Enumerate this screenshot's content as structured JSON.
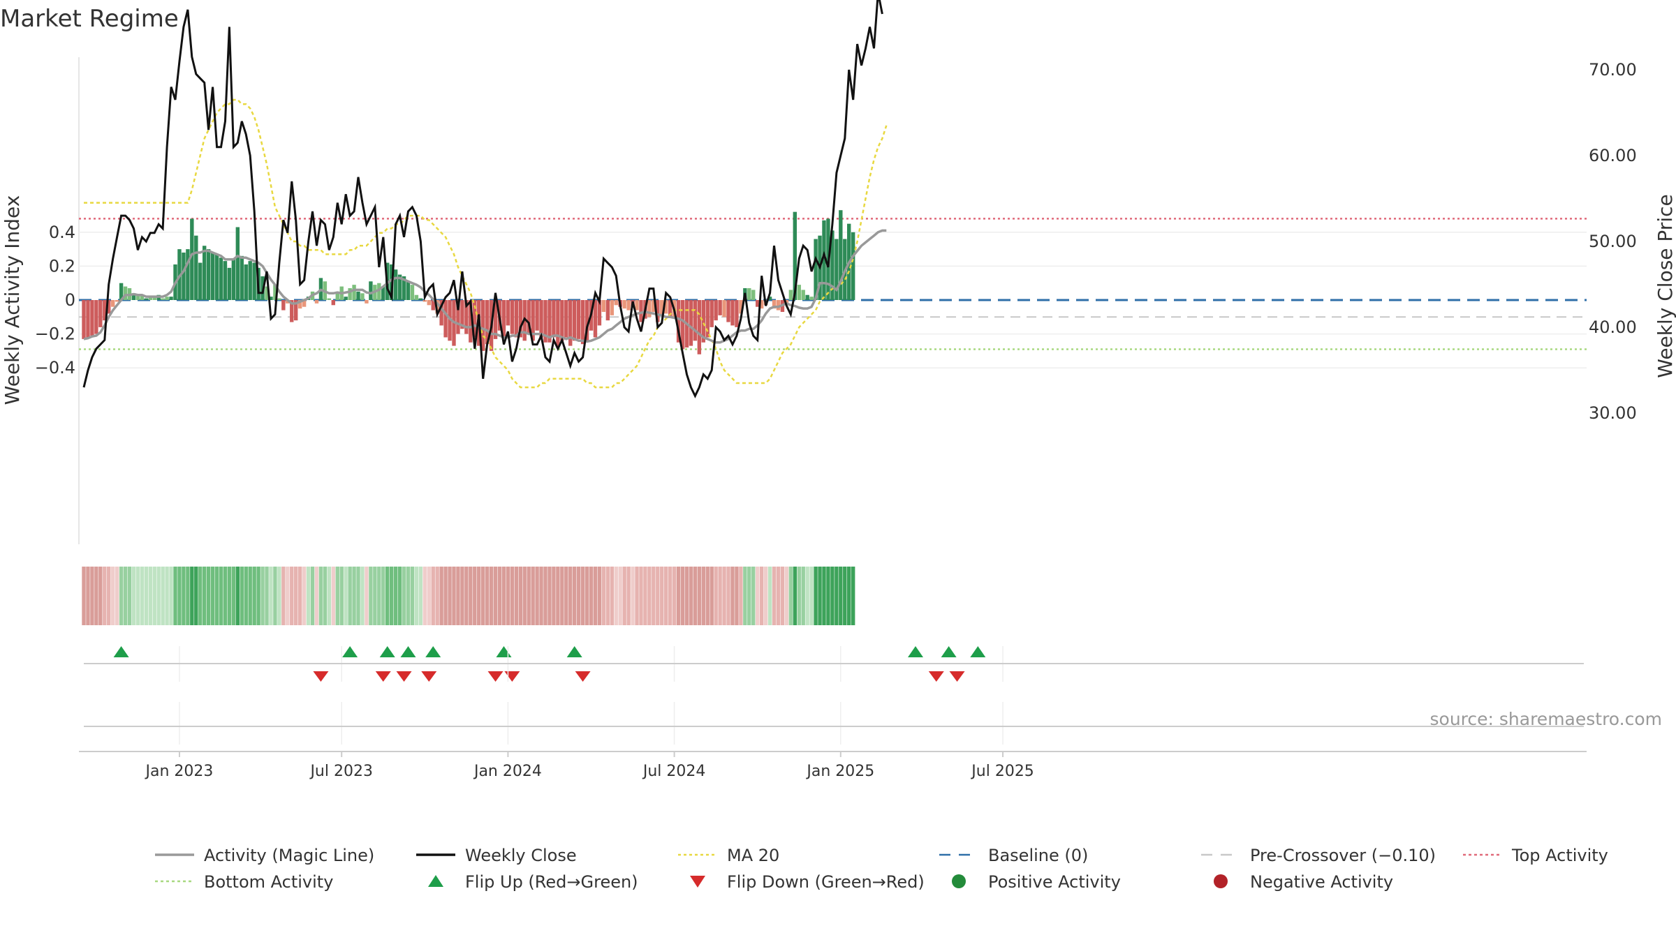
{
  "chart_data": {
    "type": "bar",
    "title": "Market Regime",
    "ylabel_left": "Weekly Activity Index",
    "ylabel_right": "Weekly Close Price",
    "ylim_left": [
      -0.57,
      0.57
    ],
    "ylim_right": [
      25.0,
      80.0
    ],
    "left_ticks": [
      "0.4",
      "0.2",
      "0",
      "−0.2",
      "−0.4"
    ],
    "left_tick_values": [
      0.4,
      0.2,
      0,
      -0.2,
      -0.4
    ],
    "right_ticks": [
      "80.00",
      "70.00",
      "60.00",
      "50.00",
      "40.00",
      "30.00"
    ],
    "right_tick_values": [
      80,
      70,
      60,
      50,
      40,
      30
    ],
    "x_ticks": [
      "Jan 2023",
      "Jul 2023",
      "Jan 2024",
      "Jul 2024",
      "Jan 2025",
      "Jul 2025"
    ],
    "x_tick_week_index": [
      23,
      62,
      102,
      142,
      182,
      221
    ],
    "reference_lines": {
      "top_activity": 0.48,
      "pre_crossover": -0.1,
      "baseline": 0,
      "bottom_activity": -0.29
    },
    "activity": [
      -0.23,
      -0.22,
      -0.21,
      -0.2,
      -0.16,
      -0.12,
      -0.08,
      -0.04,
      -0.01,
      0.1,
      0.08,
      0.07,
      0.04,
      0.03,
      0.03,
      0.01,
      0.02,
      0.02,
      0.03,
      0.01,
      0.02,
      0.02,
      0.21,
      0.3,
      0.28,
      0.3,
      0.48,
      0.38,
      0.22,
      0.32,
      0.3,
      0.28,
      0.27,
      0.25,
      0.23,
      0.19,
      0.24,
      0.43,
      0.26,
      0.21,
      0.23,
      0.22,
      0.19,
      0.14,
      0.08,
      0.02,
      0.09,
      0.01,
      -0.06,
      -0.02,
      -0.13,
      -0.12,
      -0.05,
      -0.04,
      0.02,
      0.05,
      -0.02,
      0.13,
      0.11,
      0.01,
      -0.03,
      0.05,
      0.08,
      0.02,
      0.07,
      0.09,
      0.05,
      0.04,
      -0.02,
      0.11,
      0.09,
      0.1,
      0.08,
      0.22,
      0.21,
      0.18,
      0.15,
      0.14,
      0.11,
      0.09,
      0.03,
      0.01,
      -0.01,
      -0.03,
      -0.06,
      -0.08,
      -0.15,
      -0.22,
      -0.24,
      -0.27,
      -0.2,
      -0.17,
      -0.2,
      -0.25,
      -0.22,
      -0.27,
      -0.3,
      -0.26,
      -0.3,
      -0.23,
      -0.18,
      -0.22,
      -0.15,
      -0.2,
      -0.22,
      -0.22,
      -0.24,
      -0.2,
      -0.24,
      -0.18,
      -0.22,
      -0.25,
      -0.25,
      -0.22,
      -0.28,
      -0.24,
      -0.22,
      -0.27,
      -0.24,
      -0.23,
      -0.26,
      -0.24,
      -0.18,
      -0.22,
      -0.15,
      -0.07,
      -0.12,
      -0.09,
      -0.03,
      -0.04,
      -0.05,
      -0.06,
      -0.04,
      -0.06,
      -0.13,
      -0.11,
      -0.1,
      -0.07,
      -0.13,
      -0.09,
      -0.08,
      -0.1,
      -0.1,
      -0.25,
      -0.29,
      -0.28,
      -0.27,
      -0.24,
      -0.32,
      -0.25,
      -0.22,
      -0.16,
      -0.12,
      -0.09,
      -0.1,
      -0.13,
      -0.15,
      -0.16,
      -0.08,
      0.07,
      0.07,
      0.06,
      -0.04,
      -0.05,
      -0.03,
      0.02,
      -0.05,
      -0.06,
      -0.07,
      -0.02,
      0.06,
      0.52,
      0.09,
      0.06,
      0.03,
      0.02,
      0.36,
      0.38,
      0.47,
      0.48,
      0.41,
      0.36,
      0.53,
      0.36,
      0.45,
      0.4
    ],
    "activity_colors": {
      "positive_strong": "#2e8b57",
      "positive_light": "#7dbf7d",
      "negative_strong": "#cd5c5c",
      "negative_light": "#e9967a"
    },
    "weekly_close": [
      33,
      35,
      36.5,
      37.5,
      38,
      38.5,
      45,
      48,
      50.5,
      53,
      53,
      52.5,
      51.5,
      49,
      50.5,
      50,
      51,
      51,
      52,
      51.5,
      61,
      68,
      66.5,
      71,
      75,
      77,
      71.5,
      69.5,
      69,
      68.5,
      63,
      68,
      61,
      61,
      64,
      75,
      61,
      61.5,
      64,
      62.5,
      60,
      53.5,
      44,
      44,
      46.5,
      41,
      41.5,
      47.5,
      52.5,
      51,
      57,
      52.5,
      45,
      45.5,
      50,
      53.5,
      49.5,
      52.5,
      52,
      49,
      50.5,
      54.5,
      52,
      55.5,
      53,
      53.5,
      57.5,
      54.5,
      52,
      53,
      54,
      47,
      50.5,
      44.5,
      43.5,
      52,
      53,
      50.5,
      53.5,
      54,
      53,
      50,
      43.5,
      44.5,
      45,
      41.5,
      42.5,
      43.5,
      44,
      45.5,
      42,
      46.5,
      42.5,
      43,
      37.5,
      41.5,
      34,
      38,
      40,
      44,
      41,
      38,
      39.5,
      36,
      37.5,
      40,
      41,
      40.5,
      38,
      38,
      39,
      36.5,
      36,
      38.5,
      37.5,
      38.5,
      37,
      35.5,
      37,
      36,
      36.5,
      40,
      41.5,
      44,
      43,
      48,
      47.5,
      47,
      46,
      42.5,
      40,
      39.5,
      43,
      41,
      39.5,
      42,
      44.5,
      44.5,
      40,
      40.5,
      44,
      43.5,
      42,
      39.5,
      37,
      34.5,
      33,
      32,
      33,
      34.5,
      34,
      35,
      40,
      39.5,
      38.5,
      39,
      38,
      39,
      41,
      44,
      40.5,
      39,
      38.5,
      46,
      42.5,
      44,
      49.5,
      45.5,
      44,
      42.5,
      41.5,
      44,
      48,
      49.5,
      49,
      46.5,
      48,
      47,
      48.5,
      47,
      52,
      58,
      60,
      62,
      70,
      66.5,
      73,
      70.5,
      72.5,
      75,
      72.5,
      79,
      76.5
    ],
    "activity_magic_line": [
      -0.23,
      -0.225,
      -0.215,
      -0.21,
      -0.19,
      -0.15,
      -0.1,
      -0.06,
      -0.03,
      0,
      0.03,
      0.03,
      0.035,
      0.03,
      0.03,
      0.02,
      0.02,
      0.02,
      0.02,
      0.02,
      0.03,
      0.05,
      0.1,
      0.14,
      0.17,
      0.22,
      0.27,
      0.28,
      0.28,
      0.29,
      0.29,
      0.28,
      0.27,
      0.26,
      0.24,
      0.24,
      0.24,
      0.26,
      0.25,
      0.25,
      0.24,
      0.23,
      0.22,
      0.2,
      0.16,
      0.12,
      0.09,
      0.05,
      0.02,
      0,
      -0.02,
      -0.02,
      -0.01,
      0,
      0.01,
      0.03,
      0.04,
      0.06,
      0.05,
      0.04,
      0.04,
      0.045,
      0.04,
      0.045,
      0.05,
      0.06,
      0.06,
      0.06,
      0.045,
      0.04,
      0.05,
      0.06,
      0.08,
      0.1,
      0.12,
      0.13,
      0.13,
      0.12,
      0.11,
      0.1,
      0.09,
      0.075,
      0.05,
      0.03,
      0.005,
      -0.02,
      -0.05,
      -0.08,
      -0.11,
      -0.13,
      -0.14,
      -0.15,
      -0.16,
      -0.16,
      -0.15,
      -0.16,
      -0.17,
      -0.18,
      -0.2,
      -0.2,
      -0.21,
      -0.22,
      -0.22,
      -0.21,
      -0.21,
      -0.19,
      -0.19,
      -0.2,
      -0.2,
      -0.2,
      -0.2,
      -0.21,
      -0.22,
      -0.21,
      -0.21,
      -0.22,
      -0.23,
      -0.22,
      -0.23,
      -0.24,
      -0.24,
      -0.245,
      -0.24,
      -0.23,
      -0.22,
      -0.2,
      -0.18,
      -0.17,
      -0.15,
      -0.13,
      -0.11,
      -0.1,
      -0.09,
      -0.08,
      -0.075,
      -0.07,
      -0.075,
      -0.08,
      -0.085,
      -0.09,
      -0.1,
      -0.1,
      -0.105,
      -0.11,
      -0.12,
      -0.14,
      -0.16,
      -0.18,
      -0.2,
      -0.22,
      -0.23,
      -0.24,
      -0.25,
      -0.25,
      -0.24,
      -0.23,
      -0.21,
      -0.19,
      -0.18,
      -0.18,
      -0.17,
      -0.17,
      -0.15,
      -0.12,
      -0.08,
      -0.05,
      -0.04,
      -0.04,
      -0.03,
      -0.02,
      -0.03,
      -0.035,
      -0.045,
      -0.05,
      -0.05,
      -0.04,
      0.01,
      0.1,
      0.1,
      0.095,
      0.08,
      0.06,
      0.11,
      0.17,
      0.22,
      0.26,
      0.29,
      0.32,
      0.34,
      0.36,
      0.38,
      0.4,
      0.41,
      0.41
    ],
    "ma_20": [
      54.5,
      54.5,
      54.5,
      54.5,
      54.5,
      54.5,
      54.5,
      54.5,
      54.5,
      54.5,
      54.5,
      54.5,
      54.5,
      54.5,
      54.5,
      54.5,
      54.5,
      54.5,
      54.5,
      54.5,
      54.5,
      54.5,
      54.5,
      54.5,
      54.5,
      54.5,
      56,
      58,
      60,
      62,
      63,
      64,
      65,
      65.5,
      66,
      66,
      66.5,
      66.5,
      66,
      66,
      65.5,
      64.5,
      63,
      61,
      59,
      56.5,
      54,
      53,
      52,
      51,
      50,
      50,
      49.5,
      49.5,
      49,
      49,
      49,
      49,
      48.5,
      48.5,
      48.5,
      48.5,
      48.5,
      48.5,
      49,
      49,
      49.5,
      49.5,
      49.5,
      50,
      50.5,
      51,
      51,
      51.5,
      51.5,
      52,
      52,
      52.5,
      53,
      53,
      53,
      53,
      52.5,
      52.5,
      52,
      51.5,
      51,
      50.5,
      49.5,
      48.5,
      47,
      46,
      45,
      44,
      42.5,
      40.5,
      39,
      38.5,
      37.5,
      36.5,
      36,
      35.5,
      35,
      34,
      33.5,
      33,
      33,
      33,
      33,
      33,
      33.5,
      33.5,
      34,
      34,
      34,
      34,
      34,
      34,
      34,
      34,
      34,
      33.5,
      33.5,
      33,
      33,
      33,
      33,
      33,
      33.5,
      33.5,
      34,
      34.5,
      35,
      35.5,
      36.5,
      37.5,
      38.5,
      39,
      40,
      40.5,
      41,
      41.5,
      42,
      42,
      42,
      42,
      42,
      42,
      41.5,
      40.5,
      39.5,
      38.5,
      37.5,
      36,
      35,
      34.5,
      34,
      33.5,
      33.5,
      33.5,
      33.5,
      33.5,
      33.5,
      33.5,
      33.5,
      34,
      35,
      36,
      37,
      37.5,
      38,
      39,
      40,
      40.5,
      41,
      41.5,
      42,
      43,
      43.5,
      44,
      44.5,
      44.5,
      45,
      45.5,
      46.5,
      48,
      50,
      52.5,
      55,
      57.5,
      59.5,
      61,
      62,
      63.5
    ],
    "flip_up_week_index": [
      9,
      64,
      73,
      78,
      84,
      101,
      118,
      200,
      208,
      215
    ],
    "flip_down_week_index": [
      57,
      72,
      77,
      83,
      99,
      103,
      120,
      205,
      210
    ],
    "regime_strip_shades": "red-light/green-light/green/red/green",
    "source": "source: sharemaestro.com"
  },
  "legend": [
    {
      "label": "Activity (Magic Line)",
      "symbol": "line",
      "color": "#999999"
    },
    {
      "label": "Weekly Close",
      "symbol": "line",
      "color": "#111111"
    },
    {
      "label": "MA 20",
      "symbol": "dotted",
      "color": "#e8d840"
    },
    {
      "label": "Baseline (0)",
      "symbol": "dashed",
      "color": "#2f6fa8"
    },
    {
      "label": "Pre-Crossover (−0.10)",
      "symbol": "dashed",
      "color": "#c8c8c8"
    },
    {
      "label": "Top Activity",
      "symbol": "dotted",
      "color": "#e06a7a"
    },
    {
      "label": "Bottom Activity",
      "symbol": "dotted",
      "color": "#a8d880"
    },
    {
      "label": "Flip Up (Red→Green)",
      "symbol": "triangle-up",
      "color": "#1e9e4a"
    },
    {
      "label": "Flip Down (Green→Red)",
      "symbol": "triangle-down",
      "color": "#d62b2b"
    },
    {
      "label": "Positive Activity",
      "symbol": "circle",
      "color": "#238b3a"
    },
    {
      "label": "Negative Activity",
      "symbol": "circle",
      "color": "#b22228"
    }
  ]
}
